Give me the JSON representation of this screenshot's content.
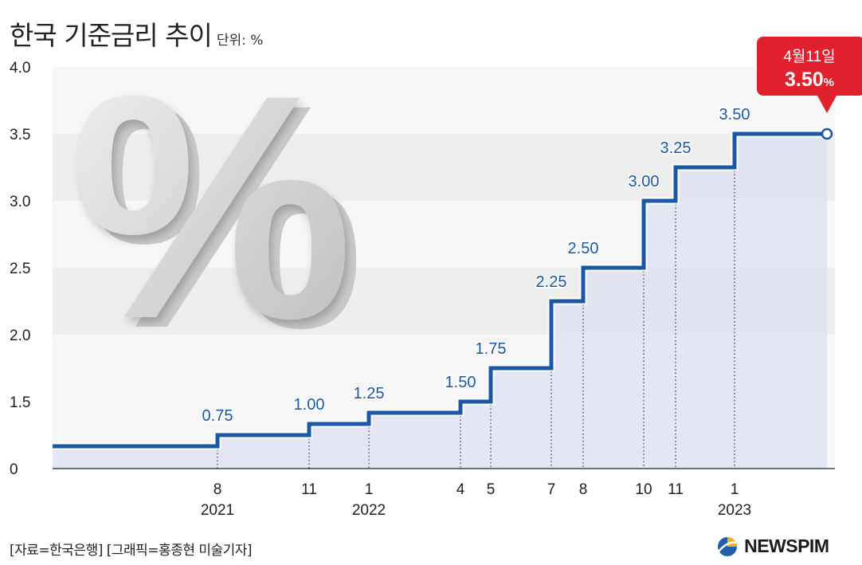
{
  "header": {
    "title": "한국 기준금리 추이",
    "unit": "단위: %"
  },
  "footer": {
    "source": "[자료=한국은행] [그래픽=홍종현 미술기자]",
    "brand": "NEWSPIM"
  },
  "colors": {
    "line": "#1a57a6",
    "callout": "#e0202d",
    "band_dark": "#eeeeee",
    "band_light": "#f7f7f7",
    "fill": "#dde1f1"
  },
  "decor": {
    "percent_symbol": "%"
  },
  "chart_data": {
    "type": "line",
    "step": true,
    "title": "한국 기준금리 추이",
    "unit": "단위: %",
    "ylim": [
      0,
      4.0
    ],
    "y_ticks": [
      "0",
      "1.5",
      "2.0",
      "2.5",
      "3.0",
      "3.5",
      "4.0"
    ],
    "x_ticks": [
      "8",
      "11",
      "1",
      "4",
      "5",
      "7",
      "8",
      "10",
      "11",
      "1"
    ],
    "year_labels": [
      "2021",
      "2022",
      "2023"
    ],
    "series": [
      {
        "values": [
          0.75,
          1.0,
          1.25,
          1.5,
          1.75,
          2.25,
          2.5,
          3.0,
          3.25,
          3.5
        ],
        "labels": [
          "0.75",
          "1.00",
          "1.25",
          "1.50",
          "1.75",
          "2.25",
          "2.50",
          "3.00",
          "3.25",
          "3.50"
        ],
        "start_value": 0.5,
        "end_value": 3.5
      }
    ],
    "annotation": {
      "date": "4월11일",
      "value": "3.50",
      "unit": "%"
    }
  }
}
